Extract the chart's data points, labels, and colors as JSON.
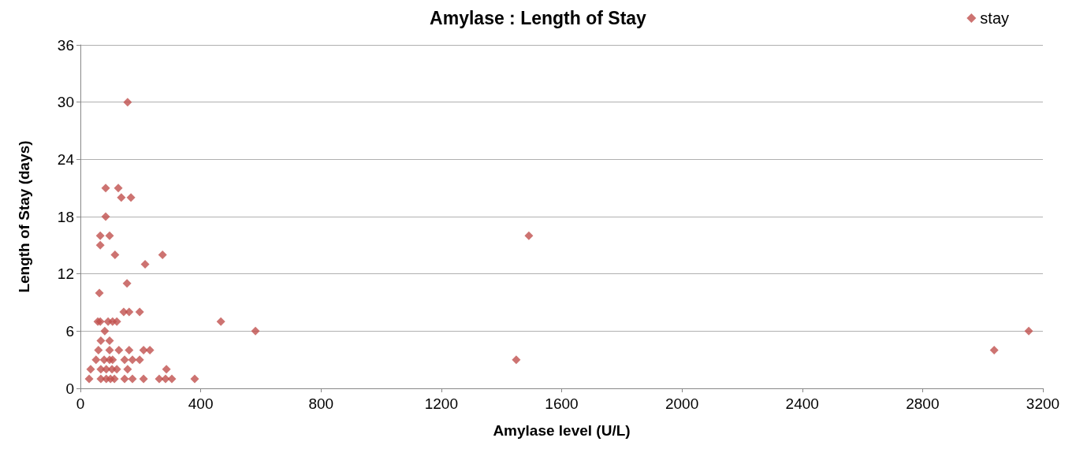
{
  "chart_data": {
    "type": "scatter",
    "title": "Amylase : Length of Stay",
    "xlabel": "Amylase level (U/L)",
    "ylabel": "Length of Stay (days)",
    "series": [
      {
        "name": "stay",
        "color": "#c0504d",
        "x": [
          157,
          84,
          126,
          136,
          168,
          84,
          66,
          97,
          1491,
          66,
          115,
          273,
          215,
          155,
          63,
          58,
          66,
          92,
          107,
          121,
          467,
          144,
          162,
          197,
          81,
          582,
          3153,
          68,
          97,
          3038,
          60,
          97,
          128,
          162,
          210,
          231,
          1449,
          52,
          79,
          97,
          107,
          147,
          173,
          197,
          34,
          68,
          86,
          105,
          121,
          157,
          286,
          29,
          68,
          86,
          100,
          113,
          147,
          173,
          210,
          262,
          283,
          304,
          380
        ],
        "values": [
          30,
          21,
          21,
          20,
          20,
          18,
          16,
          16,
          16,
          15,
          14,
          14,
          13,
          11,
          10,
          7,
          7,
          7,
          7,
          7,
          7,
          8,
          8,
          8,
          6,
          6,
          6,
          5,
          5,
          4,
          4,
          4,
          4,
          4,
          4,
          4,
          3,
          3,
          3,
          3,
          3,
          3,
          3,
          3,
          2,
          2,
          2,
          2,
          2,
          2,
          2,
          1,
          1,
          1,
          1,
          1,
          1,
          1,
          1,
          1,
          1,
          1,
          1
        ]
      }
    ],
    "xlim": [
      0,
      3200
    ],
    "xticks": [
      0,
      400,
      800,
      1200,
      1600,
      2000,
      2400,
      2800,
      3200
    ],
    "ylim": [
      0,
      36
    ],
    "yticks": [
      0,
      6,
      12,
      18,
      24,
      30,
      36
    ],
    "grid": "y",
    "legend": "top right",
    "marker": "diamond"
  }
}
